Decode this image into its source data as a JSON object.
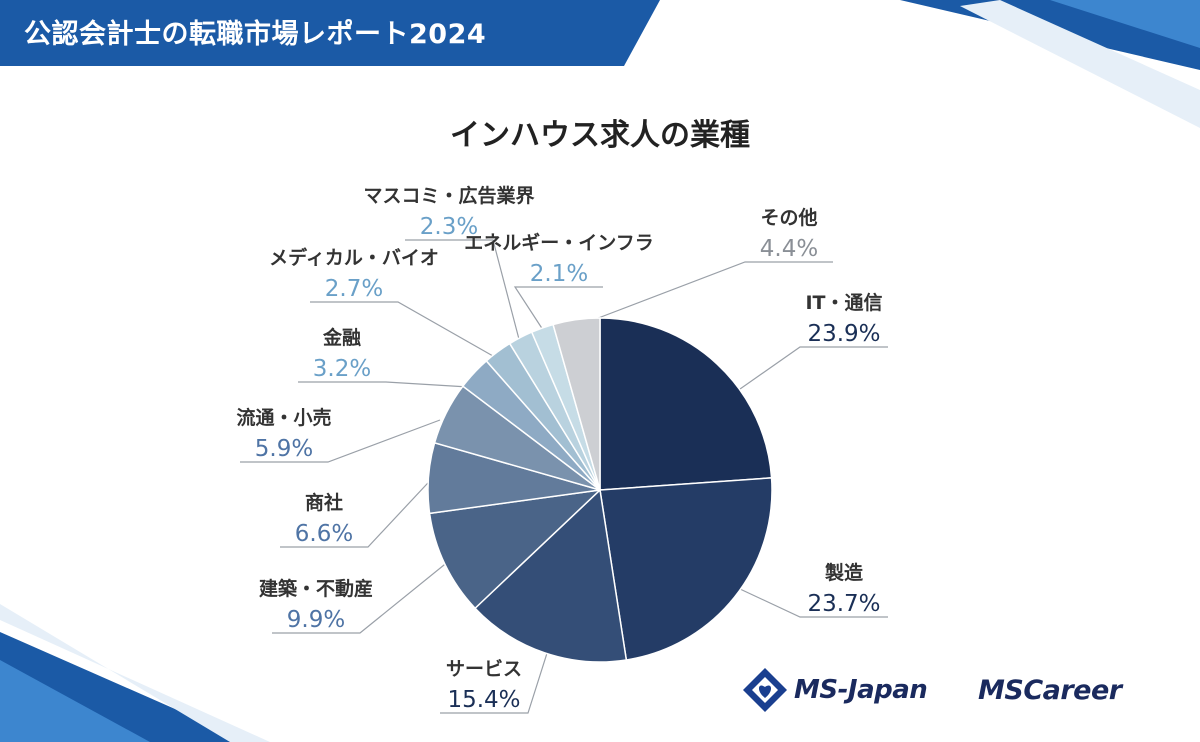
{
  "header": {
    "title": "公認会計士の転職市場レポート2024"
  },
  "logos": {
    "ms_japan": "MS-Japan",
    "ms_career": "MSCareer"
  },
  "chart_data": {
    "type": "pie",
    "title": "インハウス求人の業種",
    "unit": "%",
    "start_angle": "12 o'clock",
    "direction": "clockwise",
    "slices": [
      {
        "label": "IT・通信",
        "value": 23.9,
        "display": "23.9%",
        "color": "#1a2f56"
      },
      {
        "label": "製造",
        "value": 23.7,
        "display": "23.7%",
        "color": "#243c66"
      },
      {
        "label": "サービス",
        "value": 15.4,
        "display": "15.4%",
        "color": "#344e77"
      },
      {
        "label": "建築・不動産",
        "value": 9.9,
        "display": "9.9%",
        "color": "#4a6488"
      },
      {
        "label": "商社",
        "value": 6.6,
        "display": "6.6%",
        "color": "#627b9b"
      },
      {
        "label": "流通・小売",
        "value": 5.9,
        "display": "5.9%",
        "color": "#7a92ad"
      },
      {
        "label": "金融",
        "value": 3.2,
        "display": "3.2%",
        "color": "#8eaac4"
      },
      {
        "label": "メディカル・バイオ",
        "value": 2.7,
        "display": "2.7%",
        "color": "#a2bfd2"
      },
      {
        "label": "マスコミ・広告業界",
        "value": 2.3,
        "display": "2.3%",
        "color": "#b9d2df"
      },
      {
        "label": "エネルギー・インフラ",
        "value": 2.1,
        "display": "2.1%",
        "color": "#c6dce6"
      },
      {
        "label": "その他",
        "value": 4.4,
        "display": "4.4%",
        "color": "#cdcfd3"
      }
    ]
  }
}
